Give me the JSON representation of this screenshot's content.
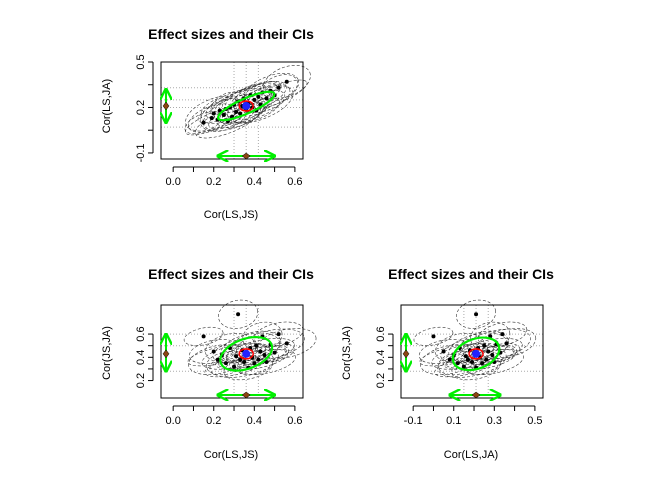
{
  "chart_data": [
    {
      "type": "scatter",
      "title": "Effect sizes and their CIs",
      "xlabel": "Cor(LS,JS)",
      "ylabel": "Cor(LS,JA)",
      "xlim": [
        -0.06,
        0.64
      ],
      "ylim": [
        -0.14,
        0.5
      ],
      "xticks": [
        0.0,
        0.2,
        0.4,
        0.6
      ],
      "xtick_labels": [
        "0.0",
        "0.2",
        "0.4",
        "0.6"
      ],
      "yticks": [
        -0.1,
        0.2,
        0.5
      ],
      "ytick_labels": [
        "-0.1",
        "0.2",
        "0.5"
      ],
      "dotted_h": [
        0.07,
        0.2,
        0.25,
        0.33
      ],
      "dotted_v": [
        0.3,
        0.36,
        0.42
      ],
      "points": [
        [
          0.15,
          0.1
        ],
        [
          0.19,
          0.13
        ],
        [
          0.2,
          0.16
        ],
        [
          0.22,
          0.12
        ],
        [
          0.23,
          0.18
        ],
        [
          0.25,
          0.15
        ],
        [
          0.26,
          0.19
        ],
        [
          0.27,
          0.11
        ],
        [
          0.28,
          0.2
        ],
        [
          0.29,
          0.14
        ],
        [
          0.3,
          0.22
        ],
        [
          0.31,
          0.17
        ],
        [
          0.32,
          0.24
        ],
        [
          0.33,
          0.16
        ],
        [
          0.34,
          0.21
        ],
        [
          0.35,
          0.26
        ],
        [
          0.36,
          0.19
        ],
        [
          0.37,
          0.23
        ],
        [
          0.38,
          0.28
        ],
        [
          0.39,
          0.2
        ],
        [
          0.4,
          0.25
        ],
        [
          0.41,
          0.18
        ],
        [
          0.42,
          0.27
        ],
        [
          0.43,
          0.22
        ],
        [
          0.44,
          0.3
        ],
        [
          0.46,
          0.26
        ],
        [
          0.48,
          0.31
        ],
        [
          0.5,
          0.28
        ],
        [
          0.52,
          0.33
        ],
        [
          0.56,
          0.37
        ]
      ],
      "pooled": {
        "x": 0.36,
        "y": 0.21
      },
      "ci_x": [
        0.22,
        0.5
      ],
      "ci_y": [
        0.1,
        0.32
      ],
      "summary_x": 0.36,
      "summary_y": 0.21
    },
    {
      "type": "scatter",
      "title": "Effect sizes and their CIs",
      "xlabel": "Cor(LS,JS)",
      "ylabel": "Cor(JS,JA)",
      "xlim": [
        -0.06,
        0.64
      ],
      "ylim": [
        0.05,
        0.85
      ],
      "xticks": [
        0.0,
        0.2,
        0.4,
        0.6
      ],
      "xtick_labels": [
        "0.0",
        "0.2",
        "0.4",
        "0.6"
      ],
      "yticks": [
        0.2,
        0.4,
        0.6
      ],
      "ytick_labels": [
        "0.2",
        "0.4",
        "0.6"
      ],
      "dotted_h": [
        0.28,
        0.5,
        0.6
      ],
      "dotted_v": [
        0.3,
        0.36,
        0.42
      ],
      "points": [
        [
          0.15,
          0.58
        ],
        [
          0.2,
          0.45
        ],
        [
          0.22,
          0.38
        ],
        [
          0.24,
          0.42
        ],
        [
          0.26,
          0.35
        ],
        [
          0.28,
          0.48
        ],
        [
          0.3,
          0.32
        ],
        [
          0.31,
          0.41
        ],
        [
          0.32,
          0.77
        ],
        [
          0.33,
          0.38
        ],
        [
          0.34,
          0.46
        ],
        [
          0.35,
          0.36
        ],
        [
          0.36,
          0.44
        ],
        [
          0.37,
          0.31
        ],
        [
          0.38,
          0.48
        ],
        [
          0.39,
          0.4
        ],
        [
          0.4,
          0.35
        ],
        [
          0.41,
          0.5
        ],
        [
          0.42,
          0.38
        ],
        [
          0.43,
          0.45
        ],
        [
          0.44,
          0.58
        ],
        [
          0.45,
          0.42
        ],
        [
          0.46,
          0.36
        ],
        [
          0.48,
          0.51
        ],
        [
          0.5,
          0.44
        ],
        [
          0.52,
          0.6
        ],
        [
          0.56,
          0.52
        ]
      ],
      "pooled": {
        "x": 0.36,
        "y": 0.43
      },
      "ci_x": [
        0.22,
        0.5
      ],
      "ci_y": [
        0.28,
        0.6
      ],
      "summary_x": 0.36,
      "summary_y": 0.43
    },
    {
      "type": "scatter",
      "title": "Effect sizes and their CIs",
      "xlabel": "Cor(LS,JA)",
      "ylabel": "Cor(JS,JA)",
      "xlim": [
        -0.16,
        0.54
      ],
      "ylim": [
        0.05,
        0.85
      ],
      "xticks": [
        -0.1,
        0.1,
        0.3,
        0.5
      ],
      "xtick_labels": [
        "-0.1",
        "0.1",
        "0.3",
        "0.5"
      ],
      "yticks": [
        0.2,
        0.4,
        0.6
      ],
      "ytick_labels": [
        "0.2",
        "0.4",
        "0.6"
      ],
      "dotted_h": [
        0.28,
        0.5,
        0.6
      ],
      "dotted_v": [
        0.15,
        0.21,
        0.27
      ],
      "points": [
        [
          0.0,
          0.58
        ],
        [
          0.05,
          0.45
        ],
        [
          0.08,
          0.38
        ],
        [
          0.1,
          0.42
        ],
        [
          0.12,
          0.35
        ],
        [
          0.13,
          0.48
        ],
        [
          0.15,
          0.32
        ],
        [
          0.16,
          0.41
        ],
        [
          0.21,
          0.77
        ],
        [
          0.17,
          0.38
        ],
        [
          0.18,
          0.46
        ],
        [
          0.19,
          0.36
        ],
        [
          0.2,
          0.44
        ],
        [
          0.21,
          0.31
        ],
        [
          0.22,
          0.48
        ],
        [
          0.23,
          0.4
        ],
        [
          0.24,
          0.35
        ],
        [
          0.25,
          0.5
        ],
        [
          0.26,
          0.38
        ],
        [
          0.27,
          0.45
        ],
        [
          0.28,
          0.58
        ],
        [
          0.29,
          0.42
        ],
        [
          0.3,
          0.36
        ],
        [
          0.31,
          0.51
        ],
        [
          0.33,
          0.44
        ],
        [
          0.34,
          0.6
        ],
        [
          0.36,
          0.52
        ]
      ],
      "pooled": {
        "x": 0.21,
        "y": 0.43
      },
      "ci_x": [
        0.08,
        0.33
      ],
      "ci_y": [
        0.28,
        0.6
      ],
      "summary_x": 0.21,
      "summary_y": 0.43
    }
  ]
}
